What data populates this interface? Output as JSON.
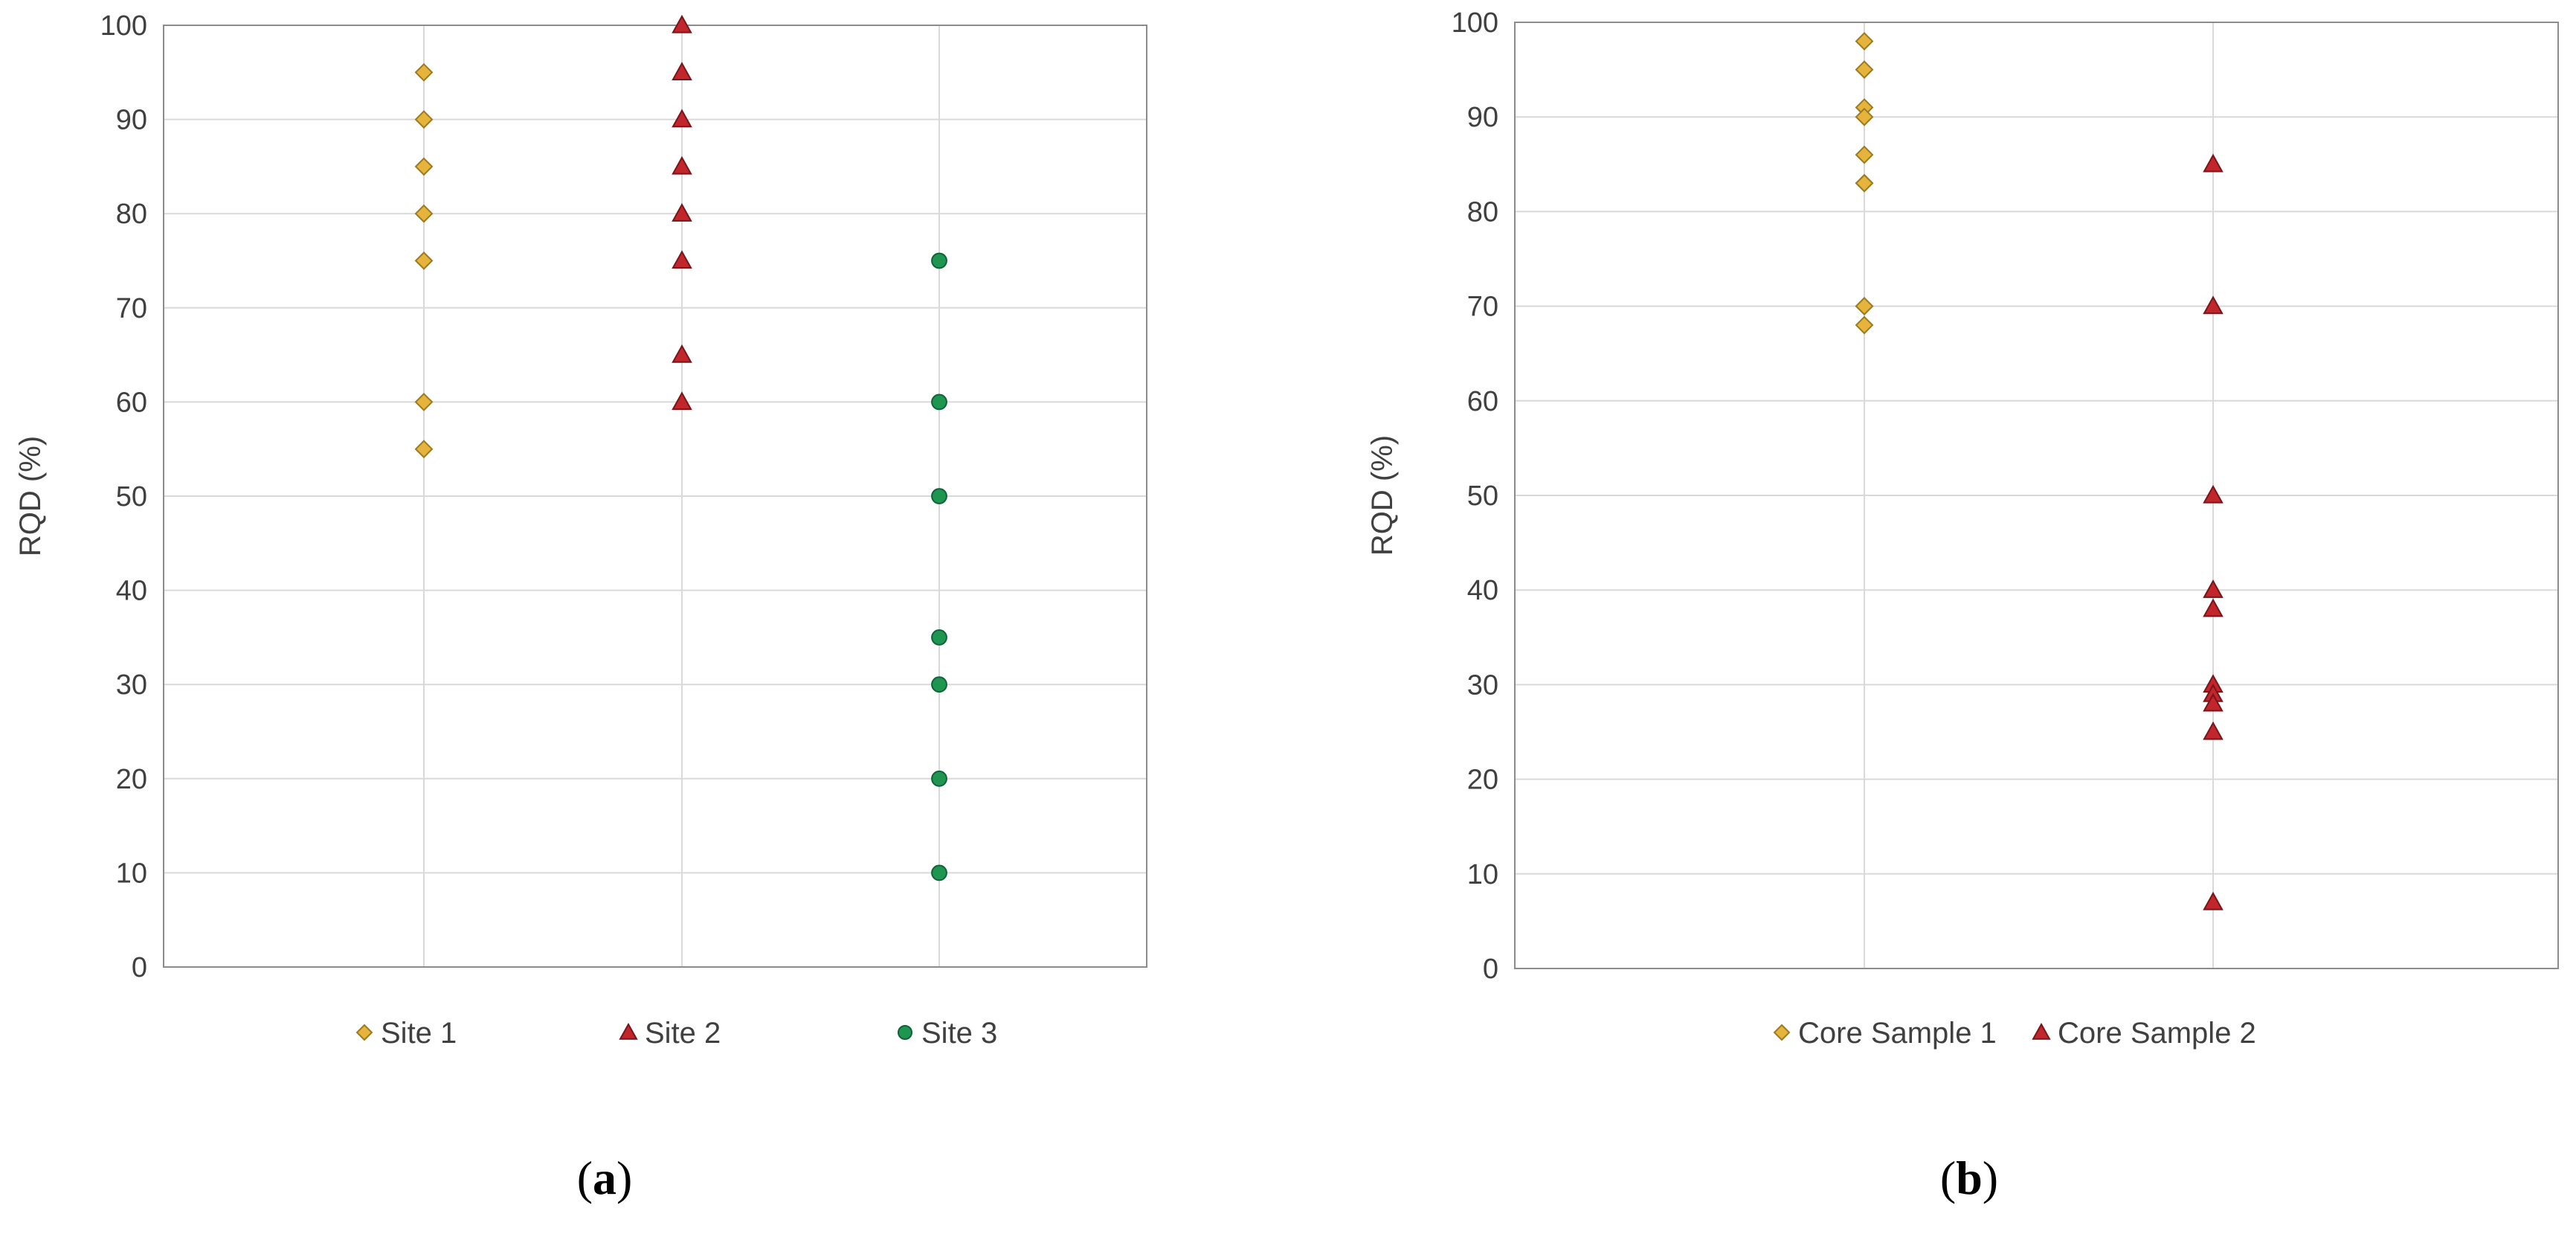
{
  "chart_data": [
    {
      "type": "scatter",
      "ylabel": "RQD (%)",
      "ylim": [
        0,
        100
      ],
      "ytick_step": 10,
      "grid": true,
      "legend_position": "bottom",
      "panel_label": {
        "open": "(",
        "letter": "a",
        "close": ")"
      },
      "categories": [
        "Site 1",
        "Site 2",
        "Site 3"
      ],
      "series": [
        {
          "name": "Site 1",
          "category_index": 0,
          "marker": "diamond",
          "color": "#E6B43C",
          "edge": "#9C7A1E",
          "values": [
            95,
            90,
            85,
            80,
            75,
            60,
            55
          ]
        },
        {
          "name": "Site 2",
          "category_index": 1,
          "marker": "triangle",
          "color": "#C0262C",
          "edge": "#7A1418",
          "values": [
            100,
            95,
            90,
            85,
            80,
            75,
            65,
            60
          ]
        },
        {
          "name": "Site 3",
          "category_index": 2,
          "marker": "circle",
          "color": "#1E9650",
          "edge": "#10623A",
          "values": [
            75,
            60,
            50,
            35,
            30,
            20,
            10
          ]
        }
      ]
    },
    {
      "type": "scatter",
      "ylabel": "RQD (%)",
      "ylim": [
        0,
        100
      ],
      "ytick_step": 10,
      "grid": true,
      "legend_position": "bottom",
      "panel_label": {
        "open": "(",
        "letter": "b",
        "close": ")"
      },
      "categories": [
        "Core Sample 1",
        "Core Sample 2"
      ],
      "series": [
        {
          "name": "Core Sample 1",
          "category_index": 0,
          "marker": "diamond",
          "color": "#E6B43C",
          "edge": "#9C7A1E",
          "values": [
            98,
            95,
            91,
            90,
            86,
            83,
            83,
            70,
            70,
            68
          ]
        },
        {
          "name": "Core Sample 2",
          "category_index": 1,
          "marker": "triangle",
          "color": "#C0262C",
          "edge": "#7A1418",
          "values": [
            85,
            70,
            50,
            40,
            38,
            30,
            29,
            28,
            25,
            7
          ]
        }
      ]
    }
  ]
}
